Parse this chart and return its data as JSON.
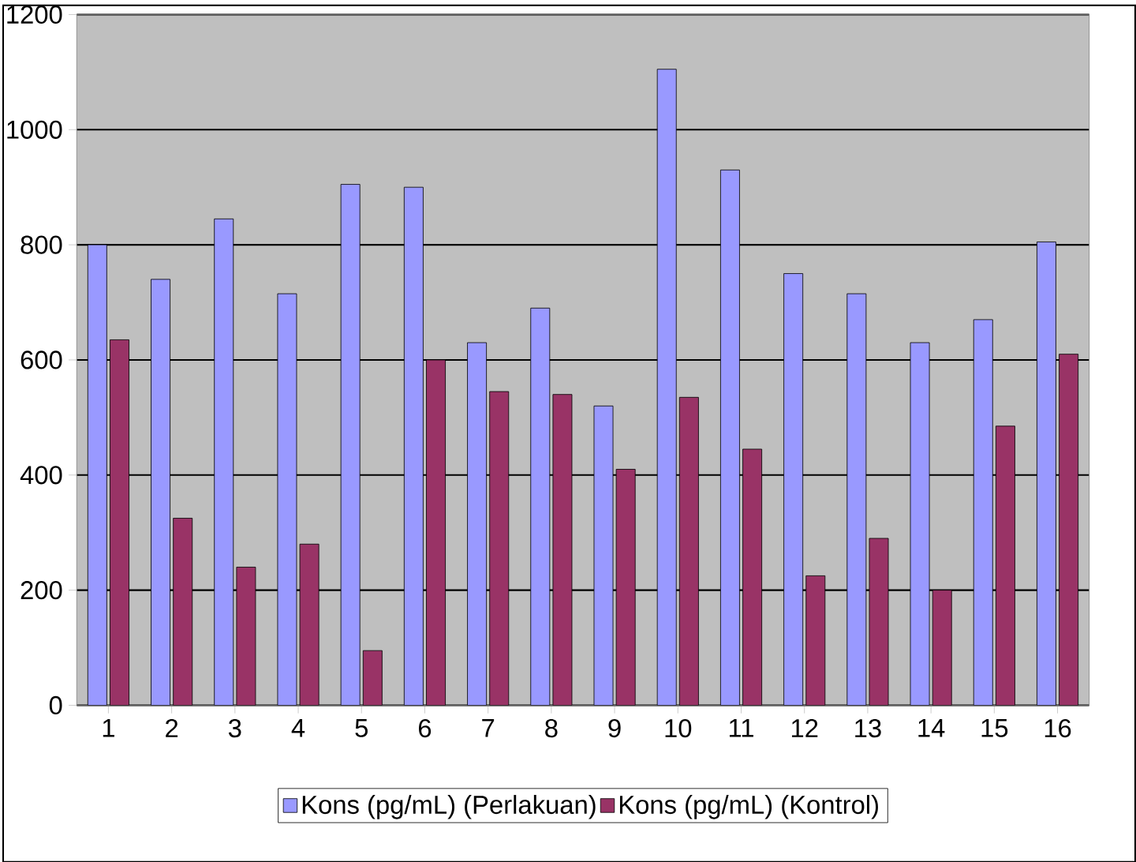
{
  "chart_data": {
    "type": "bar",
    "categories": [
      "1",
      "2",
      "3",
      "4",
      "5",
      "6",
      "7",
      "8",
      "9",
      "10",
      "11",
      "12",
      "13",
      "14",
      "15",
      "16"
    ],
    "series": [
      {
        "name": "Kons (pg/mL) (Perlakuan)",
        "color": "#9999ff",
        "values": [
          800,
          740,
          845,
          715,
          905,
          900,
          630,
          690,
          520,
          1105,
          930,
          750,
          715,
          630,
          670,
          805
        ]
      },
      {
        "name": "Kons (pg/mL) (Kontrol)",
        "color": "#993366",
        "values": [
          635,
          325,
          240,
          280,
          95,
          600,
          545,
          540,
          410,
          535,
          445,
          225,
          290,
          200,
          485,
          610
        ]
      }
    ],
    "ylim": [
      0,
      1200
    ],
    "yticks": [
      0,
      200,
      400,
      600,
      800,
      1000,
      1200
    ],
    "grid": "y",
    "legend": "bottom"
  }
}
